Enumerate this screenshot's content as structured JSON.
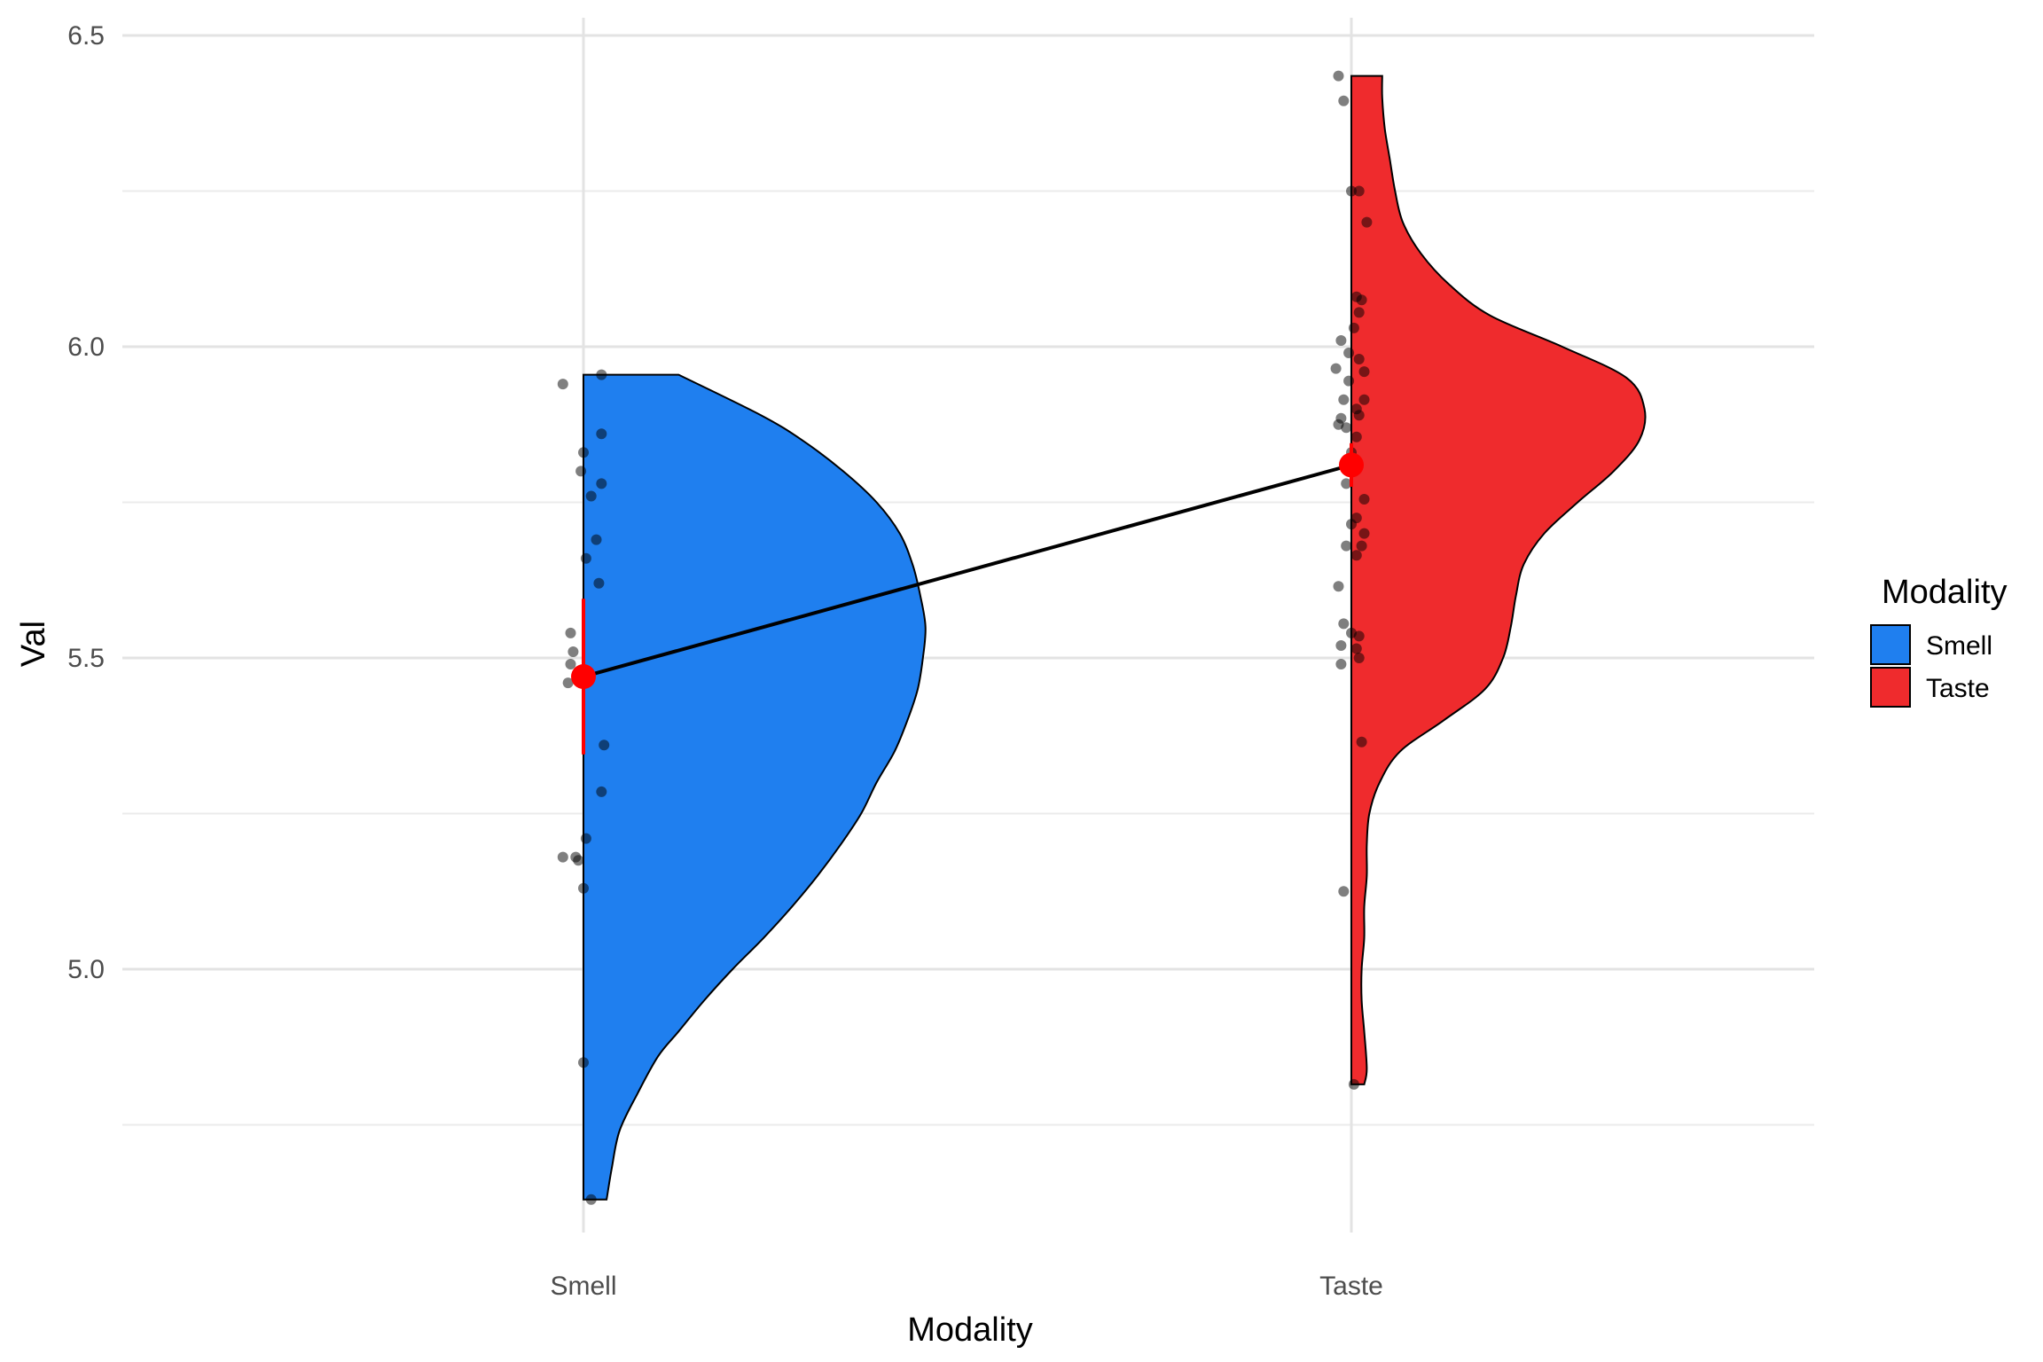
{
  "chart_data": {
    "type": "raincloud",
    "title": "",
    "xlabel": "Modality",
    "ylabel": "Val",
    "ylim": [
      4.6,
      6.5
    ],
    "yticks": [
      5.0,
      5.5,
      6.0,
      6.5
    ],
    "y_tick_labels": [
      "5.0",
      "5.5",
      "6.0",
      "6.5"
    ],
    "y_minor_ticks": [
      4.75,
      5.25,
      5.75,
      6.25
    ],
    "grid": true,
    "categories": [
      "Smell",
      "Taste"
    ],
    "legend": {
      "title": "Modality",
      "position": "right",
      "entries": [
        {
          "label": "Smell",
          "color": "#1f7fef"
        },
        {
          "label": "Taste",
          "color": "#ef2b2d"
        }
      ]
    },
    "series": [
      {
        "name": "Smell",
        "color": "#1f7fef",
        "mean": 5.47,
        "error": [
          5.345,
          5.595
        ],
        "violin": {
          "y": [
            4.63,
            4.68,
            4.74,
            4.8,
            4.86,
            4.9,
            4.95,
            5.0,
            5.05,
            5.1,
            5.15,
            5.2,
            5.25,
            5.3,
            5.35,
            5.4,
            5.45,
            5.5,
            5.55,
            5.6,
            5.65,
            5.7,
            5.75,
            5.8,
            5.85,
            5.89,
            5.955
          ],
          "width": [
            0.09,
            0.11,
            0.14,
            0.21,
            0.29,
            0.37,
            0.47,
            0.58,
            0.7,
            0.81,
            0.91,
            1.0,
            1.08,
            1.14,
            1.21,
            1.26,
            1.3,
            1.32,
            1.33,
            1.31,
            1.28,
            1.23,
            1.14,
            1.01,
            0.85,
            0.69,
            0.37
          ]
        },
        "points": [
          [
            5.94,
            -0.08
          ],
          [
            5.955,
            0.07
          ],
          [
            5.86,
            0.07
          ],
          [
            5.83,
            0.0
          ],
          [
            5.8,
            -0.01
          ],
          [
            5.78,
            0.07
          ],
          [
            5.76,
            0.03
          ],
          [
            5.69,
            0.05
          ],
          [
            5.66,
            0.01
          ],
          [
            5.62,
            0.06
          ],
          [
            5.54,
            -0.05
          ],
          [
            5.51,
            -0.04
          ],
          [
            5.49,
            -0.05
          ],
          [
            5.46,
            -0.06
          ],
          [
            5.36,
            0.08
          ],
          [
            5.285,
            0.07
          ],
          [
            5.21,
            0.01
          ],
          [
            5.18,
            -0.08
          ],
          [
            5.18,
            -0.03
          ],
          [
            5.175,
            -0.02
          ],
          [
            5.13,
            0.0
          ],
          [
            4.85,
            0.0
          ],
          [
            4.63,
            0.03
          ]
        ]
      },
      {
        "name": "Taste",
        "color": "#ef2b2d",
        "mean": 5.81,
        "error": [
          5.775,
          5.845
        ],
        "violin": {
          "y": [
            4.815,
            4.84,
            4.9,
            4.95,
            5.0,
            5.05,
            5.1,
            5.15,
            5.2,
            5.25,
            5.3,
            5.35,
            5.4,
            5.45,
            5.5,
            5.55,
            5.6,
            5.65,
            5.7,
            5.75,
            5.8,
            5.85,
            5.9,
            5.95,
            6.0,
            6.05,
            6.1,
            6.15,
            6.2,
            6.25,
            6.3,
            6.35,
            6.4,
            6.435
          ],
          "width": [
            0.05,
            0.06,
            0.05,
            0.04,
            0.04,
            0.05,
            0.05,
            0.06,
            0.06,
            0.07,
            0.11,
            0.19,
            0.36,
            0.52,
            0.59,
            0.62,
            0.64,
            0.67,
            0.75,
            0.88,
            1.02,
            1.12,
            1.14,
            1.07,
            0.82,
            0.54,
            0.38,
            0.27,
            0.2,
            0.17,
            0.15,
            0.13,
            0.12,
            0.12
          ]
        },
        "points": [
          [
            6.435,
            -0.05
          ],
          [
            6.395,
            -0.03
          ],
          [
            6.25,
            0.0
          ],
          [
            6.25,
            0.03
          ],
          [
            6.2,
            0.06
          ],
          [
            6.08,
            0.02
          ],
          [
            6.075,
            0.04
          ],
          [
            6.055,
            0.03
          ],
          [
            6.03,
            0.01
          ],
          [
            6.01,
            -0.04
          ],
          [
            5.99,
            -0.01
          ],
          [
            5.98,
            0.03
          ],
          [
            5.965,
            -0.06
          ],
          [
            5.96,
            0.05
          ],
          [
            5.945,
            -0.01
          ],
          [
            5.915,
            -0.03
          ],
          [
            5.915,
            0.05
          ],
          [
            5.9,
            0.02
          ],
          [
            5.89,
            0.03
          ],
          [
            5.885,
            -0.04
          ],
          [
            5.875,
            -0.05
          ],
          [
            5.87,
            -0.02
          ],
          [
            5.855,
            0.02
          ],
          [
            5.83,
            0.0
          ],
          [
            5.78,
            -0.02
          ],
          [
            5.755,
            0.05
          ],
          [
            5.725,
            0.02
          ],
          [
            5.715,
            0.0
          ],
          [
            5.7,
            0.05
          ],
          [
            5.68,
            -0.02
          ],
          [
            5.68,
            0.04
          ],
          [
            5.665,
            0.02
          ],
          [
            5.615,
            -0.05
          ],
          [
            5.555,
            -0.03
          ],
          [
            5.54,
            0.0
          ],
          [
            5.535,
            0.03
          ],
          [
            5.52,
            -0.04
          ],
          [
            5.515,
            0.02
          ],
          [
            5.5,
            0.03
          ],
          [
            5.49,
            -0.04
          ],
          [
            5.365,
            0.04
          ],
          [
            5.125,
            -0.03
          ],
          [
            4.815,
            0.01
          ]
        ]
      }
    ]
  }
}
